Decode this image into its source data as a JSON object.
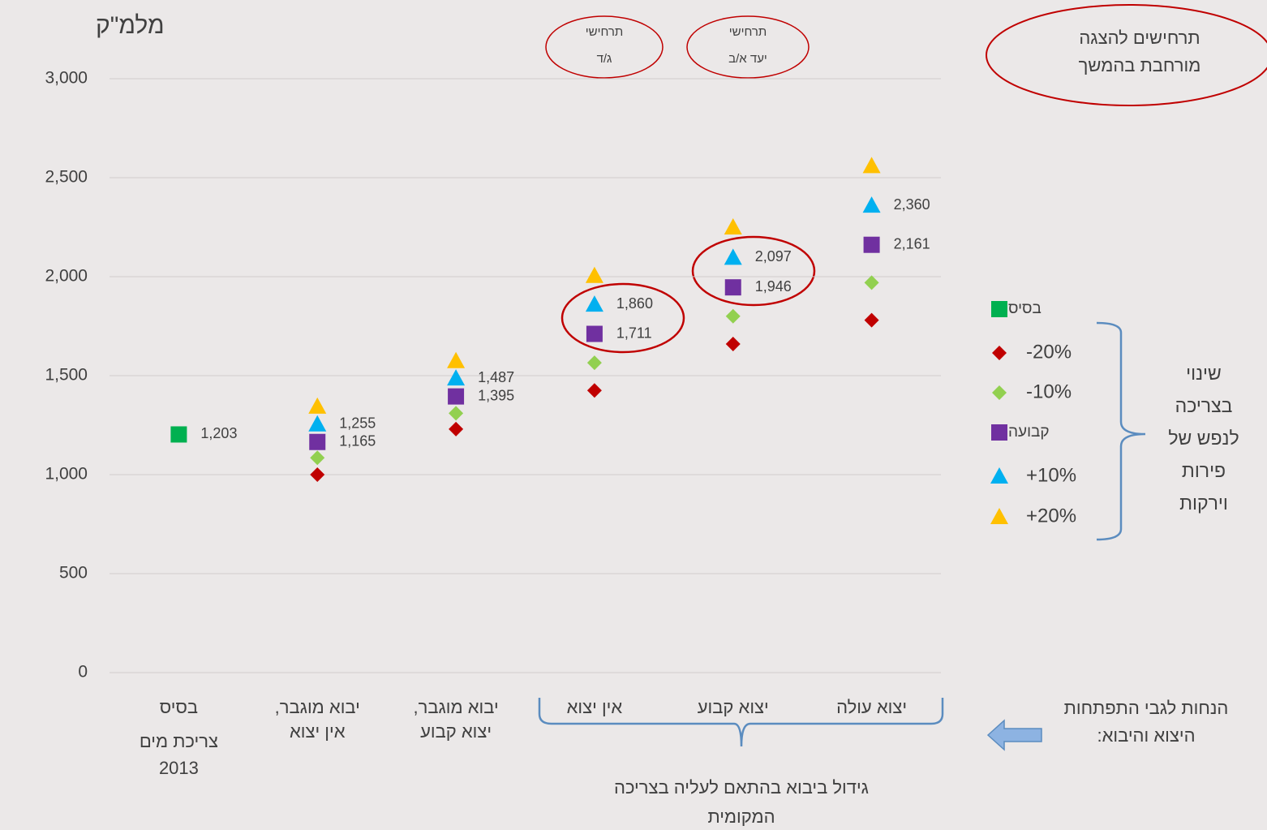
{
  "chart_data": {
    "type": "scatter",
    "y_label": "מלמ\"ק",
    "categories": [
      [
        "בסיס"
      ],
      [
        "יבוא מוגבר,",
        "אין יצוא"
      ],
      [
        "יבוא מוגבר,",
        "יצוא קבוע"
      ],
      [
        "אין יצוא"
      ],
      [
        "יצוא קבוע"
      ],
      [
        "יצוא עולה"
      ]
    ],
    "base_note": [
      "צריכת מים",
      "2013"
    ],
    "series": [
      {
        "name": "בסיס",
        "color": "#00b050",
        "marker": "square",
        "values": [
          1203,
          null,
          null,
          null,
          null,
          null
        ],
        "value_labels": [
          "1,203",
          null,
          null,
          null,
          null,
          null
        ]
      },
      {
        "name": "-20%",
        "color": "#c00000",
        "marker": "diamond",
        "values": [
          null,
          1000,
          1230,
          1425,
          1660,
          1780
        ]
      },
      {
        "name": "-10%",
        "color": "#92d050",
        "marker": "diamond",
        "values": [
          null,
          1085,
          1310,
          1565,
          1800,
          1970
        ]
      },
      {
        "name": "קבועה",
        "color": "#7030a0",
        "marker": "square",
        "values": [
          null,
          1165,
          1395,
          1711,
          1946,
          2161
        ],
        "value_labels": [
          null,
          "1,165",
          "1,395",
          "1,711",
          "1,946",
          "2,161"
        ]
      },
      {
        "name": "+10%",
        "color": "#00b0f0",
        "marker": "triangle",
        "values": [
          null,
          1255,
          1487,
          1860,
          2097,
          2360
        ],
        "value_labels": [
          null,
          "1,255",
          "1,487",
          "1,860",
          "2,097",
          "2,360"
        ]
      },
      {
        "name": "+20%",
        "color": "#ffc000",
        "marker": "triangle",
        "values": [
          null,
          1345,
          1575,
          2005,
          2250,
          2560
        ]
      }
    ],
    "ylim": [
      0,
      3000
    ],
    "yticks": [
      0,
      500,
      {
        "value": 1000,
        "label": "1,000"
      },
      {
        "value": 1500,
        "label": "1,500"
      },
      {
        "value": 2000,
        "label": "2,000"
      },
      {
        "value": 2500,
        "label": "2,500"
      },
      {
        "value": 3000,
        "label": "3,000"
      }
    ],
    "grid": true,
    "legend_title": [
      "שינוי",
      "בצריכה",
      "לנפש של",
      "פירות",
      "וירקות"
    ],
    "annotations": {
      "scenario_cd": [
        "תרחישי",
        "ג/ד"
      ],
      "scenario_ab": [
        "תרחישי",
        "יעד א/ב"
      ],
      "expanded": [
        "תרחישים להצגה",
        "מורחבת בהמשך"
      ],
      "assumptions": [
        "הנחות לגבי התפתחות",
        "היצוא והיבוא:"
      ],
      "import_growth": [
        "גידול ביבוא בהתאם לעליה בצריכה",
        "המקומית"
      ]
    }
  }
}
